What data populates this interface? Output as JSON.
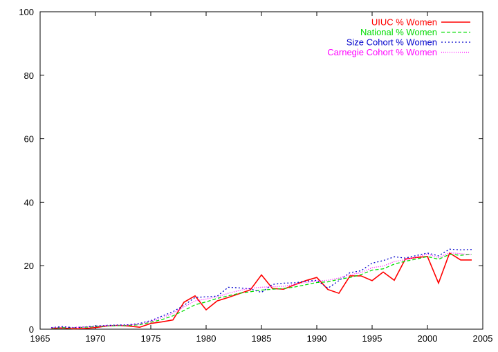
{
  "chart_data": {
    "type": "line",
    "title": "",
    "xlabel": "",
    "ylabel": "",
    "xlim": [
      1965,
      2005
    ],
    "ylim": [
      0,
      100
    ],
    "x_ticks": [
      1965,
      1970,
      1975,
      1980,
      1985,
      1990,
      1995,
      2000,
      2005
    ],
    "y_ticks": [
      0,
      20,
      40,
      60,
      80,
      100
    ],
    "grid": false,
    "legend_position": "top-right",
    "x": [
      1966,
      1967,
      1968,
      1969,
      1970,
      1971,
      1972,
      1973,
      1974,
      1975,
      1976,
      1977,
      1978,
      1979,
      1980,
      1981,
      1982,
      1983,
      1984,
      1985,
      1986,
      1987,
      1988,
      1989,
      1990,
      1991,
      1992,
      1993,
      1994,
      1995,
      1996,
      1997,
      1998,
      1999,
      2000,
      2001,
      2002,
      2003,
      2004
    ],
    "series": [
      {
        "name": "UIUC % Women",
        "color": "#ff0000",
        "dash": "solid",
        "values": [
          0.2,
          0.4,
          0.1,
          0.2,
          0.5,
          1.0,
          1.2,
          1.0,
          0.6,
          1.8,
          2.3,
          2.9,
          8.5,
          10.5,
          6.1,
          8.9,
          10.0,
          11.2,
          12.4,
          17.1,
          12.8,
          12.6,
          14.0,
          15.3,
          16.3,
          12.5,
          11.3,
          16.8,
          16.8,
          15.3,
          18.0,
          15.4,
          22.1,
          22.6,
          22.9,
          14.5,
          24.0,
          21.8,
          21.8
        ]
      },
      {
        "name": "National % Women",
        "color": "#00dd00",
        "dash": "dashed",
        "values": [
          0.3,
          0.5,
          0.4,
          0.6,
          0.8,
          1.0,
          1.1,
          1.2,
          1.4,
          2.2,
          3.0,
          4.2,
          5.9,
          7.7,
          8.6,
          9.7,
          10.5,
          11.3,
          11.8,
          12.3,
          12.6,
          12.8,
          13.3,
          14.0,
          14.7,
          14.9,
          15.7,
          16.3,
          17.2,
          18.6,
          19.0,
          20.5,
          21.4,
          22.1,
          22.9,
          22.0,
          23.6,
          23.3,
          23.6
        ]
      },
      {
        "name": "Size Cohort % Women",
        "color": "#0000cc",
        "dash": "dotted",
        "values": [
          0.5,
          0.8,
          0.5,
          0.7,
          1.0,
          1.2,
          1.3,
          1.4,
          1.8,
          2.7,
          4.1,
          5.5,
          7.5,
          10.0,
          10.2,
          10.4,
          13.2,
          13.0,
          12.7,
          11.6,
          14.1,
          14.5,
          14.6,
          15.1,
          15.4,
          12.9,
          15.3,
          17.8,
          18.4,
          20.8,
          21.6,
          22.8,
          22.4,
          23.2,
          24.0,
          23.1,
          25.2,
          25.0,
          25.1
        ]
      },
      {
        "name": "Carnegie Cohort % Women",
        "color": "#ff00ff",
        "dash": "dense-dotted",
        "values": [
          0.4,
          0.6,
          0.5,
          0.7,
          0.9,
          1.1,
          1.2,
          1.3,
          1.6,
          2.5,
          3.6,
          5.0,
          7.0,
          8.9,
          9.5,
          10.2,
          11.3,
          12.2,
          12.9,
          13.2,
          13.4,
          13.5,
          14.1,
          14.7,
          15.2,
          15.4,
          16.1,
          17.2,
          17.8,
          19.4,
          19.9,
          21.3,
          21.9,
          22.7,
          23.7,
          22.5,
          24.1,
          23.8,
          23.4
        ]
      }
    ]
  }
}
